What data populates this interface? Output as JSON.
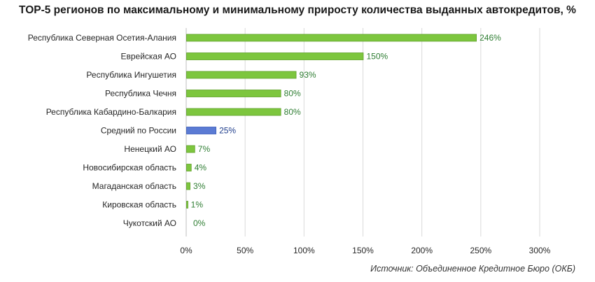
{
  "title": "TOP-5 регионов по максимальному и минимальному приросту количества выданных автокредитов, %",
  "source": "Источник: Объединенное Кредитное Бюро (ОКБ)",
  "colors": {
    "bar": "#7dc63e",
    "bar_edge": "#5fa02a",
    "highlight": "#5b7bd4",
    "highlight_edge": "#3a5cb8",
    "value_text": "#2e7d32",
    "highlight_text": "#1f3e8c"
  },
  "chart_data": {
    "type": "bar",
    "orientation": "horizontal",
    "categories": [
      "Республика Северная Осетия-Алания",
      "Еврейская АО",
      "Республика Ингушетия",
      "Республика Чечня",
      "Республика Кабардино-Балкария",
      "Средний по России",
      "Ненецкий АО",
      "Новосибирская область",
      "Магаданская область",
      "Кировская область",
      "Чукотский АО"
    ],
    "values": [
      246,
      150,
      93,
      80,
      80,
      25,
      7,
      4,
      3,
      1,
      0
    ],
    "value_labels": [
      "246%",
      "150%",
      "93%",
      "80%",
      "80%",
      "25%",
      "7%",
      "4%",
      "3%",
      "1%",
      "0%"
    ],
    "highlight_category": "Средний по России",
    "xlim": [
      0,
      300
    ],
    "xticks": [
      0,
      50,
      100,
      150,
      200,
      250,
      300
    ],
    "xtick_labels": [
      "0%",
      "50%",
      "100%",
      "150%",
      "200%",
      "250%",
      "300%"
    ],
    "grid": true,
    "legend": "none"
  }
}
